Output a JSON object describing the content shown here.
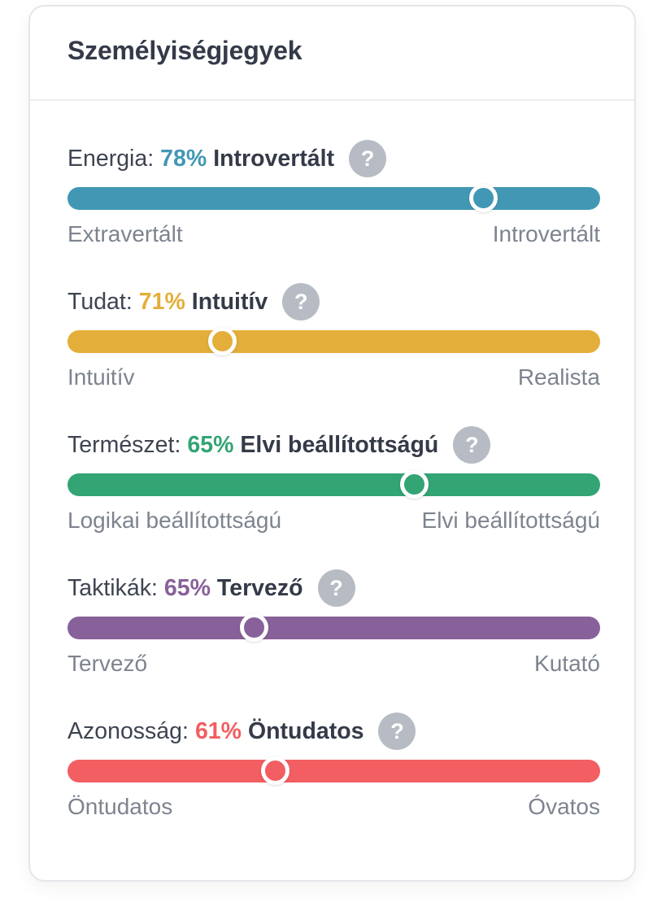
{
  "card": {
    "title": "Személyiségjegyek"
  },
  "traits": [
    {
      "label": "Energia:",
      "percent": "78%",
      "name": "Introvertált",
      "left_pole": "Extravertált",
      "right_pole": "Introvertált",
      "color": "#4298b4",
      "thumb_position": 0.78,
      "help_icon": "?"
    },
    {
      "label": "Tudat:",
      "percent": "71%",
      "name": "Intuitív",
      "left_pole": "Intuitív",
      "right_pole": "Realista",
      "color": "#e4ae3a",
      "thumb_position": 0.29,
      "help_icon": "?"
    },
    {
      "label": "Természet:",
      "percent": "65%",
      "name": "Elvi beállítottságú",
      "left_pole": "Logikai beállítottságú",
      "right_pole": "Elvi beállítottságú",
      "color": "#33a474",
      "thumb_position": 0.65,
      "help_icon": "?"
    },
    {
      "label": "Taktikák:",
      "percent": "65%",
      "name": "Tervező",
      "left_pole": "Tervező",
      "right_pole": "Kutató",
      "color": "#88619a",
      "thumb_position": 0.35,
      "help_icon": "?"
    },
    {
      "label": "Azonosság:",
      "percent": "61%",
      "name": "Öntudatos",
      "left_pole": "Öntudatos",
      "right_pole": "Óvatos",
      "color": "#f25e62",
      "thumb_position": 0.39,
      "help_icon": "?"
    }
  ]
}
